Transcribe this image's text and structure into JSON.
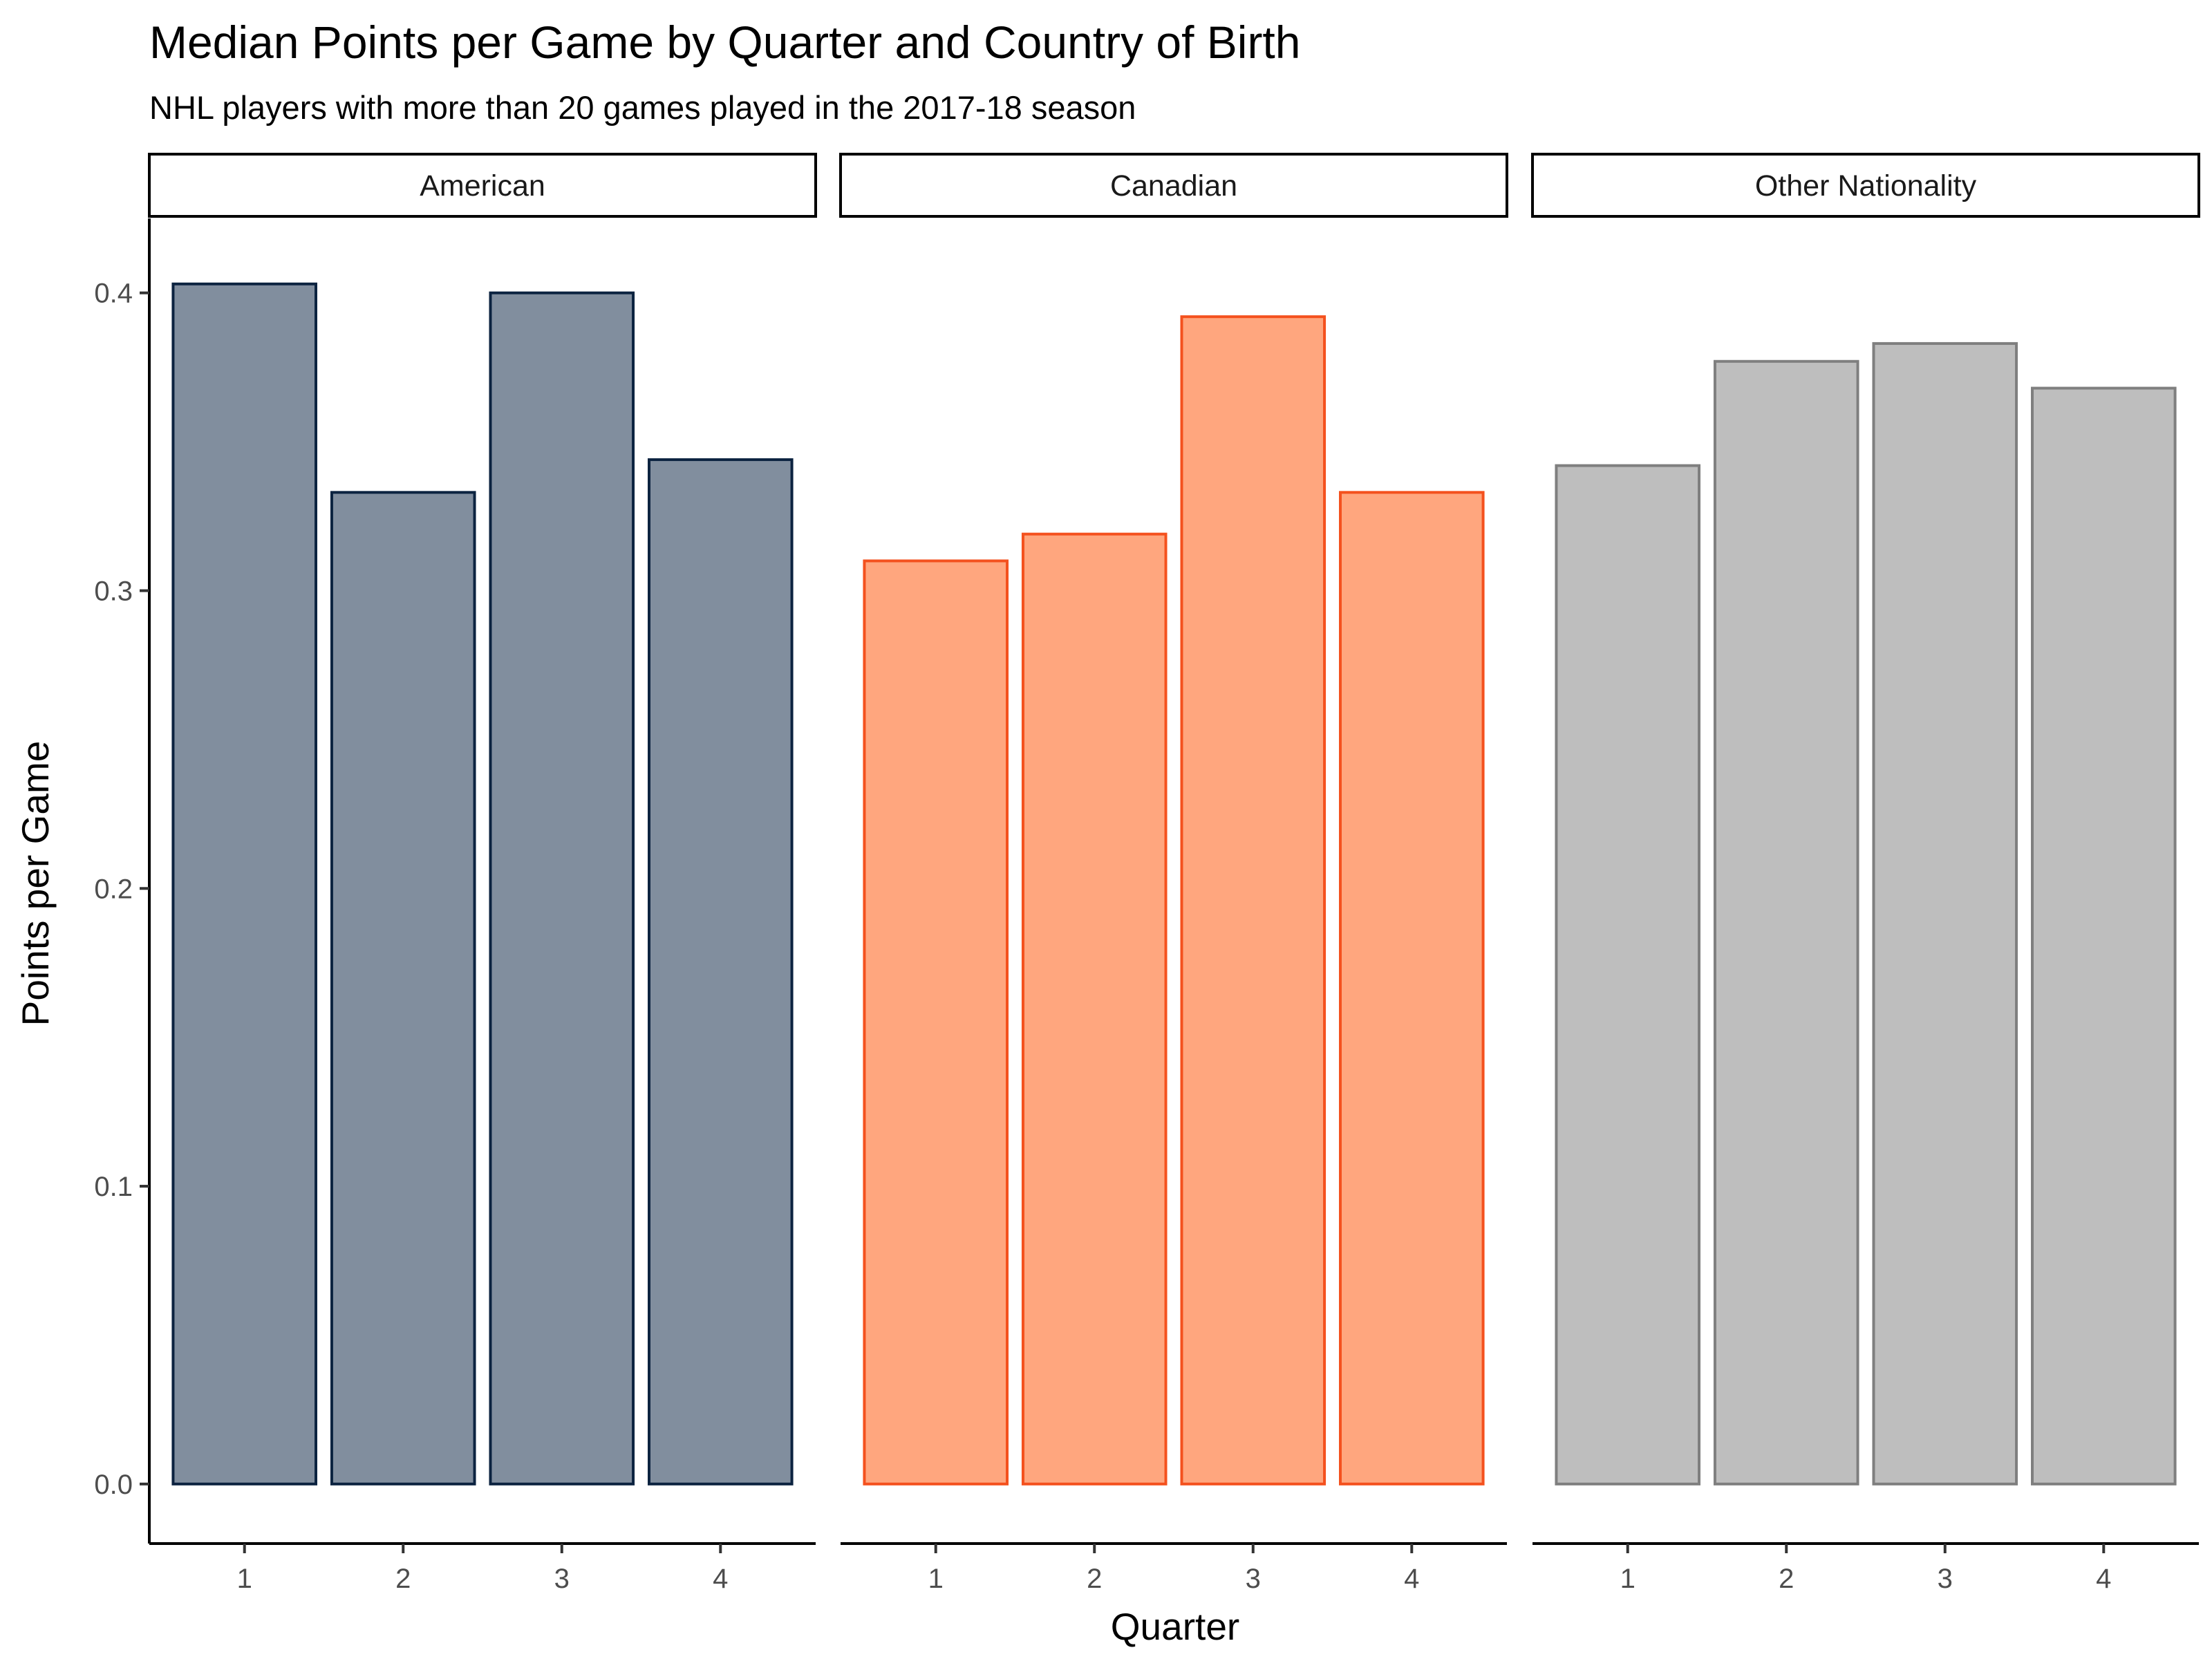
{
  "chart_data": {
    "type": "bar",
    "title": "Median Points per Game by Quarter and Country of Birth",
    "subtitle": "NHL players with more than 20 games played in the 2017-18 season",
    "xlabel": "Quarter",
    "ylabel": "Points per Game",
    "categories": [
      "1",
      "2",
      "3",
      "4"
    ],
    "ylim": [
      -0.02,
      0.425
    ],
    "yticks": [
      0.0,
      0.1,
      0.2,
      0.3,
      0.4
    ],
    "ytick_labels": [
      "0.0",
      "0.1",
      "0.2",
      "0.3",
      "0.4"
    ],
    "grid": false,
    "facets": [
      {
        "name": "American",
        "values": [
          0.403,
          0.333,
          0.4,
          0.344
        ],
        "fill": "#818E9E",
        "stroke": "#0C2340"
      },
      {
        "name": "Canadian",
        "values": [
          0.31,
          0.319,
          0.392,
          0.333
        ],
        "fill": "#FFA67E",
        "stroke": "#F4511E"
      },
      {
        "name": "Other Nationality",
        "values": [
          0.342,
          0.377,
          0.383,
          0.368
        ],
        "fill": "#BEBEBE",
        "stroke": "#7F7F7F"
      }
    ]
  }
}
